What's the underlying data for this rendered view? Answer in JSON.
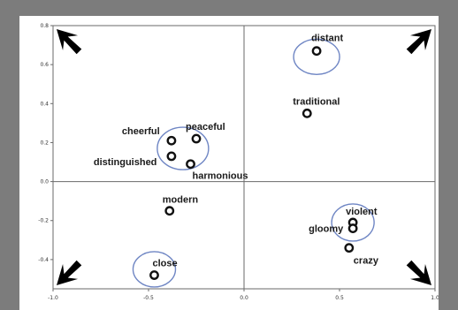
{
  "chart_data": {
    "type": "scatter",
    "title": "",
    "xlabel": "",
    "ylabel": "",
    "xlim": [
      -1.0,
      1.0
    ],
    "ylim": [
      -0.55,
      0.8
    ],
    "x_ticks": [
      -1.0,
      -0.5,
      0.0,
      0.5,
      1.0
    ],
    "x_tick_labels": [
      "-1.0",
      "-0.5",
      "0.0",
      "0.5",
      "1.0"
    ],
    "y_ticks": [
      -0.4,
      -0.2,
      0.0,
      0.2,
      0.4,
      0.6,
      0.8
    ],
    "y_tick_labels": [
      "-0.4",
      "-0.2",
      "0.0",
      "0.2",
      "0.4",
      "0.6",
      "0.8"
    ],
    "grid": false,
    "reference_lines": {
      "x": 0.0,
      "y": 0.0
    },
    "points": [
      {
        "label": "distant",
        "x": 0.38,
        "y": 0.67
      },
      {
        "label": "traditional",
        "x": 0.33,
        "y": 0.35
      },
      {
        "label": "cheerful",
        "x": -0.38,
        "y": 0.21
      },
      {
        "label": "peaceful",
        "x": -0.25,
        "y": 0.22
      },
      {
        "label": "distinguished",
        "x": -0.38,
        "y": 0.13
      },
      {
        "label": "harmonious",
        "x": -0.28,
        "y": 0.09
      },
      {
        "label": "modern",
        "x": -0.39,
        "y": -0.15
      },
      {
        "label": "violent",
        "x": 0.57,
        "y": -0.21
      },
      {
        "label": "gloomy",
        "x": 0.57,
        "y": -0.24
      },
      {
        "label": "crazy",
        "x": 0.55,
        "y": -0.34
      },
      {
        "label": "close",
        "x": -0.47,
        "y": -0.48
      }
    ],
    "clusters": [
      {
        "cx": 0.38,
        "cy": 0.64
      },
      {
        "cx": -0.32,
        "cy": 0.17
      },
      {
        "cx": 0.57,
        "cy": -0.21
      },
      {
        "cx": -0.47,
        "cy": -0.45
      }
    ],
    "corner_arrows": [
      "top-left",
      "top-right",
      "bottom-left",
      "bottom-right"
    ],
    "colors": {
      "background": "#7c7c7c",
      "panel": "#ffffff",
      "axis": "#6a6a6a",
      "point": "#111111",
      "cluster_circle": "#6f86c4",
      "arrow": "#000000"
    }
  }
}
